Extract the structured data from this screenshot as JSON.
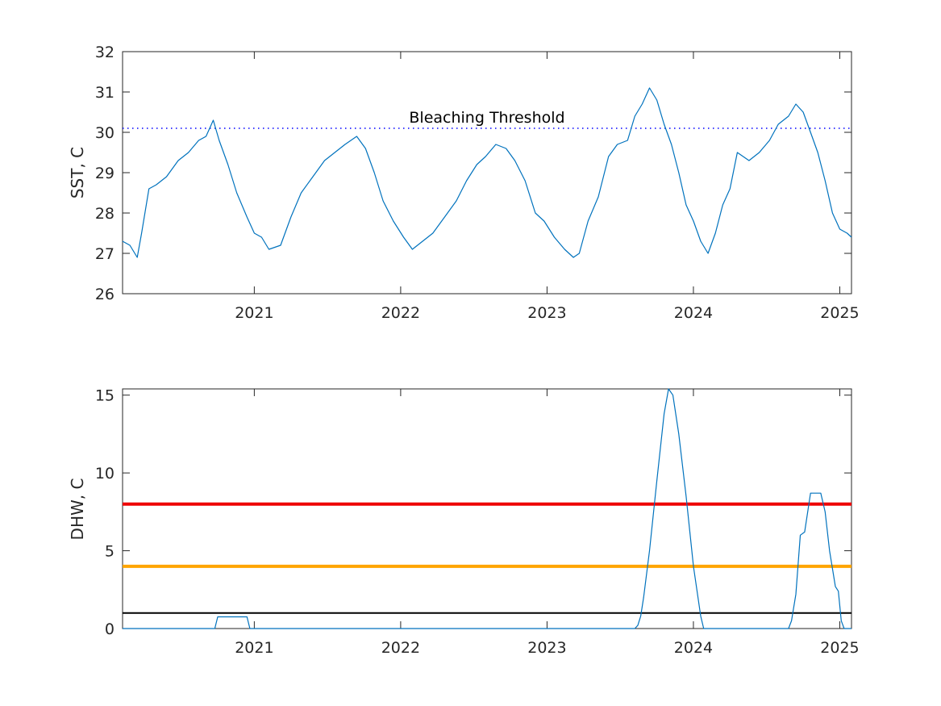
{
  "chart_data": [
    {
      "type": "line",
      "ylabel": "SST, C",
      "xlabel": "",
      "xlim": [
        2020.1,
        2025.08
      ],
      "ylim": [
        26,
        32
      ],
      "yticks": [
        26,
        27,
        28,
        29,
        30,
        31,
        32
      ],
      "xticks": [
        2021,
        2022,
        2023,
        2024,
        2025
      ],
      "xtick_labels": [
        "2021",
        "2022",
        "2023",
        "2024",
        "2025"
      ],
      "grid": false,
      "series": [
        {
          "color": "#0072BD",
          "x": [
            2020.1,
            2020.15,
            2020.2,
            2020.23,
            2020.28,
            2020.33,
            2020.4,
            2020.48,
            2020.55,
            2020.62,
            2020.67,
            2020.72,
            2020.76,
            2020.82,
            2020.88,
            2020.95,
            2021.0,
            2021.05,
            2021.1,
            2021.18,
            2021.25,
            2021.32,
            2021.4,
            2021.48,
            2021.55,
            2021.62,
            2021.7,
            2021.76,
            2021.82,
            2021.88,
            2021.95,
            2022.02,
            2022.08,
            2022.15,
            2022.22,
            2022.3,
            2022.38,
            2022.45,
            2022.52,
            2022.58,
            2022.65,
            2022.72,
            2022.78,
            2022.85,
            2022.92,
            2022.98,
            2023.05,
            2023.12,
            2023.18,
            2023.22,
            2023.28,
            2023.35,
            2023.42,
            2023.48,
            2023.55,
            2023.6,
            2023.65,
            2023.7,
            2023.75,
            2023.8,
            2023.85,
            2023.9,
            2023.95,
            2024.0,
            2024.05,
            2024.1,
            2024.15,
            2024.2,
            2024.25,
            2024.3,
            2024.38,
            2024.45,
            2024.52,
            2024.58,
            2024.65,
            2024.7,
            2024.75,
            2024.8,
            2024.85,
            2024.9,
            2024.95,
            2025.0,
            2025.05,
            2025.08
          ],
          "y": [
            27.3,
            27.2,
            26.9,
            27.5,
            28.6,
            28.7,
            28.9,
            29.3,
            29.5,
            29.8,
            29.9,
            30.3,
            29.8,
            29.2,
            28.5,
            27.9,
            27.5,
            27.4,
            27.1,
            27.2,
            27.9,
            28.5,
            28.9,
            29.3,
            29.5,
            29.7,
            29.9,
            29.6,
            29.0,
            28.3,
            27.8,
            27.4,
            27.1,
            27.3,
            27.5,
            27.9,
            28.3,
            28.8,
            29.2,
            29.4,
            29.7,
            29.6,
            29.3,
            28.8,
            28.0,
            27.8,
            27.4,
            27.1,
            26.9,
            27.0,
            27.8,
            28.4,
            29.4,
            29.7,
            29.8,
            30.4,
            30.7,
            31.1,
            30.8,
            30.2,
            29.7,
            29.0,
            28.2,
            27.8,
            27.3,
            27.0,
            27.5,
            28.2,
            28.6,
            29.5,
            29.3,
            29.5,
            29.8,
            30.2,
            30.4,
            30.7,
            30.5,
            30.0,
            29.5,
            28.8,
            28.0,
            27.6,
            27.5,
            27.4
          ]
        }
      ],
      "annotations": [
        {
          "text": "Bleaching Threshold",
          "y": 30.1
        }
      ],
      "reference_lines": [
        {
          "y": 30.1,
          "style": "dotted",
          "color": "#0000FF"
        }
      ]
    },
    {
      "type": "line",
      "ylabel": "DHW, C",
      "xlabel": "",
      "xlim": [
        2020.1,
        2025.08
      ],
      "ylim": [
        0,
        15.4
      ],
      "yticks": [
        0,
        5,
        10,
        15
      ],
      "xticks": [
        2021,
        2022,
        2023,
        2024,
        2025
      ],
      "xtick_labels": [
        "2021",
        "2022",
        "2023",
        "2024",
        "2025"
      ],
      "grid": false,
      "series": [
        {
          "color": "#0072BD",
          "x": [
            2020.1,
            2020.73,
            2020.75,
            2020.95,
            2020.97,
            2023.6,
            2023.62,
            2023.64,
            2023.66,
            2023.7,
            2023.75,
            2023.8,
            2023.83,
            2023.86,
            2023.9,
            2023.95,
            2024.0,
            2024.05,
            2024.07,
            2024.65,
            2024.67,
            2024.7,
            2024.73,
            2024.76,
            2024.8,
            2024.87,
            2024.9,
            2024.93,
            2024.97,
            2024.99,
            2025.01,
            2025.03,
            2025.08
          ],
          "y": [
            0,
            0,
            0.75,
            0.75,
            0,
            0,
            0.2,
            0.8,
            2.0,
            5.0,
            9.5,
            13.8,
            15.4,
            15.0,
            12.5,
            8.5,
            4.0,
            0.8,
            0,
            0,
            0.5,
            2.2,
            6.0,
            6.2,
            8.7,
            8.7,
            7.5,
            5.0,
            2.7,
            2.4,
            0.5,
            0,
            0
          ]
        }
      ],
      "reference_lines": [
        {
          "y": 8,
          "style": "solid",
          "color": "#EE0000"
        },
        {
          "y": 4,
          "style": "solid",
          "color": "#FFA500"
        },
        {
          "y": 1,
          "style": "solid",
          "color": "#000000"
        }
      ]
    }
  ]
}
